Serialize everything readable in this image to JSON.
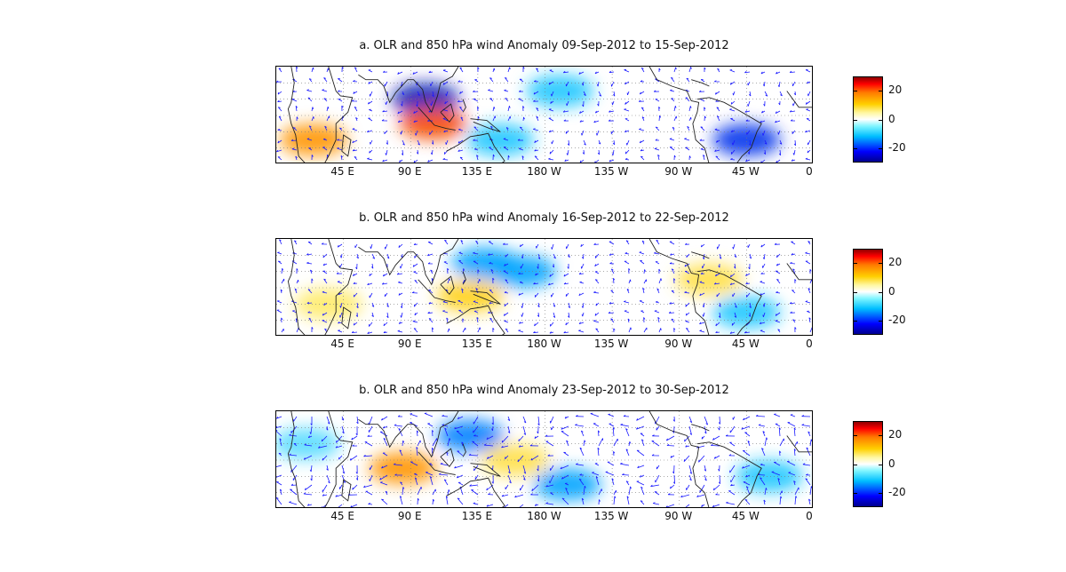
{
  "chart_data": [
    {
      "type": "heatmap",
      "title": "a. OLR and 850 hPa wind Anomaly 09-Sep-2012 to 15-Sep-2012",
      "x_tick_labels": [
        "45 E",
        "90 E",
        "135 E",
        "180 W",
        "135 W",
        "90 W",
        "45 W",
        "0"
      ],
      "colorbar": {
        "ticks": [
          "20",
          "0",
          "-20"
        ],
        "range": [
          -30,
          30
        ]
      },
      "grid": true,
      "anomaly_centers": [
        {
          "lon": 100,
          "lat": 10,
          "value": -28
        },
        {
          "lon": 105,
          "lat": -5,
          "value": 25
        },
        {
          "lon": 25,
          "lat": -15,
          "value": 20
        },
        {
          "lon": 315,
          "lat": -15,
          "value": -25
        },
        {
          "lon": 190,
          "lat": 15,
          "value": -15
        },
        {
          "lon": 150,
          "lat": -15,
          "value": -15
        }
      ]
    },
    {
      "type": "heatmap",
      "title": "b. OLR and 850 hPa wind Anomaly 16-Sep-2012 to 22-Sep-2012",
      "x_tick_labels": [
        "45 E",
        "90 E",
        "135 E",
        "180 W",
        "135 W",
        "90 W",
        "45 W",
        "0"
      ],
      "colorbar": {
        "ticks": [
          "20",
          "0",
          "-20"
        ],
        "range": [
          -30,
          30
        ]
      },
      "grid": true,
      "anomaly_centers": [
        {
          "lon": 130,
          "lat": -5,
          "value": 15
        },
        {
          "lon": 140,
          "lat": 15,
          "value": -18
        },
        {
          "lon": 165,
          "lat": 10,
          "value": -18
        },
        {
          "lon": 290,
          "lat": 5,
          "value": 12
        },
        {
          "lon": 315,
          "lat": -15,
          "value": -15
        },
        {
          "lon": 35,
          "lat": -10,
          "value": 10
        }
      ]
    },
    {
      "type": "heatmap",
      "title": "b. OLR and 850 hPa wind Anomaly 23-Sep-2012 to 30-Sep-2012",
      "x_tick_labels": [
        "45 E",
        "90 E",
        "135 E",
        "180 W",
        "135 W",
        "90 W",
        "45 W",
        "0"
      ],
      "colorbar": {
        "ticks": [
          "20",
          "0",
          "-20"
        ],
        "range": [
          -30,
          30
        ]
      },
      "grid": true,
      "anomaly_centers": [
        {
          "lon": 85,
          "lat": -5,
          "value": 20
        },
        {
          "lon": 130,
          "lat": 15,
          "value": -20
        },
        {
          "lon": 160,
          "lat": 0,
          "value": 12
        },
        {
          "lon": 195,
          "lat": -15,
          "value": -18
        },
        {
          "lon": 330,
          "lat": -10,
          "value": -15
        },
        {
          "lon": 20,
          "lat": 10,
          "value": -12
        }
      ]
    }
  ]
}
